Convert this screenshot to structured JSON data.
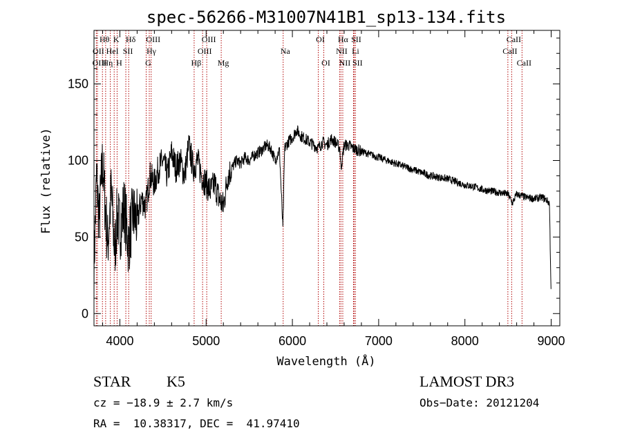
{
  "chart_data": {
    "type": "line",
    "title": "spec-56266-M31007N41B1_sp13-134.fits",
    "xlabel": "Wavelength (Å)",
    "ylabel": "Flux (relative)",
    "xlim": [
      3700,
      9100
    ],
    "ylim": [
      -8,
      185
    ],
    "xticks": [
      4000,
      5000,
      6000,
      7000,
      8000,
      9000
    ],
    "yticks": [
      0,
      50,
      100,
      150
    ],
    "spectrum_outline": {
      "x": [
        3700,
        3730,
        3760,
        3800,
        3830,
        3860,
        3900,
        3940,
        3970,
        4000,
        4050,
        4100,
        4150,
        4200,
        4250,
        4300,
        4350,
        4400,
        4450,
        4500,
        4550,
        4600,
        4650,
        4700,
        4750,
        4800,
        4850,
        4900,
        4950,
        5000,
        5050,
        5100,
        5150,
        5200,
        5250,
        5300,
        5350,
        5400,
        5450,
        5500,
        5550,
        5600,
        5650,
        5700,
        5750,
        5800,
        5850,
        5890,
        5910,
        5930,
        5950,
        6000,
        6050,
        6100,
        6150,
        6200,
        6250,
        6300,
        6350,
        6400,
        6450,
        6500,
        6550,
        6563,
        6600,
        6650,
        6700,
        6750,
        6800,
        6900,
        7000,
        7100,
        7200,
        7300,
        7400,
        7500,
        7600,
        7700,
        7800,
        7900,
        8000,
        8100,
        8200,
        8300,
        8400,
        8500,
        8550,
        8600,
        8650,
        8700,
        8800,
        8900,
        8950,
        8980,
        9000
      ],
      "y": [
        30,
        90,
        60,
        100,
        70,
        45,
        80,
        40,
        65,
        55,
        70,
        45,
        65,
        60,
        75,
        70,
        90,
        85,
        95,
        100,
        90,
        105,
        95,
        100,
        90,
        110,
        95,
        100,
        90,
        85,
        80,
        85,
        75,
        70,
        90,
        95,
        100,
        98,
        102,
        100,
        103,
        105,
        107,
        110,
        108,
        100,
        107,
        55,
        108,
        110,
        112,
        115,
        120,
        116,
        114,
        112,
        110,
        108,
        112,
        110,
        114,
        112,
        108,
        95,
        110,
        110,
        108,
        107,
        106,
        104,
        102,
        100,
        98,
        96,
        94,
        92,
        90,
        89,
        88,
        86,
        84,
        83,
        81,
        80,
        79,
        78,
        72,
        78,
        77,
        76,
        75,
        76,
        74,
        72,
        10
      ]
    },
    "lines": [
      {
        "label": "Hθ",
        "x": 3798,
        "row": 0
      },
      {
        "label": "OII",
        "x": 3727,
        "row": 1
      },
      {
        "label": "OIII",
        "x": 3740,
        "row": 2
      },
      {
        "label": "Hη",
        "x": 3835,
        "row": 2
      },
      {
        "label": "HeI",
        "x": 3889,
        "row": 1
      },
      {
        "label": "K",
        "x": 3934,
        "row": 0
      },
      {
        "label": "H",
        "x": 3968,
        "row": 2
      },
      {
        "label": "SII",
        "x": 4069,
        "row": 1
      },
      {
        "label": "Hδ",
        "x": 4102,
        "row": 0
      },
      {
        "label": "G",
        "x": 4305,
        "row": 2
      },
      {
        "label": "OIII",
        "x": 4363,
        "row": 0
      },
      {
        "label": "Hγ",
        "x": 4341,
        "row": 1
      },
      {
        "label": "Hβ",
        "x": 4861,
        "row": 2
      },
      {
        "label": "OIII",
        "x": 5007,
        "row": 0
      },
      {
        "label": "OIII",
        "x": 4959,
        "row": 1
      },
      {
        "label": "Mg",
        "x": 5175,
        "row": 2
      },
      {
        "label": "Na",
        "x": 5893,
        "row": 1
      },
      {
        "label": "OI",
        "x": 6300,
        "row": 0
      },
      {
        "label": "OI",
        "x": 6364,
        "row": 2
      },
      {
        "label": "Hα",
        "x": 6563,
        "row": 0
      },
      {
        "label": "NII",
        "x": 6548,
        "row": 1
      },
      {
        "label": "NII",
        "x": 6584,
        "row": 2
      },
      {
        "label": "SII",
        "x": 6716,
        "row": 0
      },
      {
        "label": "Li",
        "x": 6708,
        "row": 1
      },
      {
        "label": "SII",
        "x": 6731,
        "row": 2
      },
      {
        "label": "CaII",
        "x": 8542,
        "row": 0
      },
      {
        "label": "CaII",
        "x": 8498,
        "row": 1
      },
      {
        "label": "CaII",
        "x": 8662,
        "row": 2
      }
    ]
  },
  "info": {
    "class": "STAR",
    "subclass": "K5",
    "survey": "LAMOST DR3",
    "cz": "cz = −18.9 ± 2.7 km/s",
    "obs_date": "Obs−Date: 20121204",
    "radec": "RA =  10.38317, DEC =  41.97410"
  }
}
